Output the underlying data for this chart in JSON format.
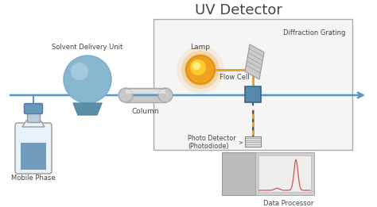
{
  "title": "UV Detector",
  "title_fontsize": 13,
  "bg_color": "#ffffff",
  "fig_width": 4.74,
  "fig_height": 2.61,
  "dpi": 100,
  "labels": {
    "mobile_phase": "Mobile Phase",
    "solvent_delivery": "Solvent Delivery Unit",
    "column": "Column",
    "lamp": "Lamp",
    "diffraction_grating": "Diffraction Grating",
    "flow_cell": "Flow Cell",
    "photo_detector": "Photo Detector\n(Photodiode)",
    "data_processor": "Data Processor"
  },
  "colors": {
    "line_blue": "#5599cc",
    "arrow_blue": "#5599cc",
    "pump_blue_top": "#88b8d0",
    "pump_blue_bot": "#5a8faa",
    "bottle_body": "#e8f2f8",
    "bottle_liquid": "#4a7fa8",
    "bottle_cap": "#6699bb",
    "column_gray": "#c8c8c8",
    "column_outline": "#aaaaaa",
    "lamp_outer": "#f0a020",
    "lamp_inner": "#ffcc30",
    "lamp_center": "#ffee80",
    "orange_line": "#e8a030",
    "flow_cell_blue": "#5588aa",
    "uv_box_border": "#aaaaaa",
    "uv_box_fill": "#f5f5f5",
    "data_box_fill": "#bbbbbb",
    "data_screen_bg": "#f0eeec",
    "data_screen_border": "#aaaaaa",
    "chromatogram_line": "#cc5555",
    "grating_fill": "#cccccc",
    "grating_line": "#999999",
    "dotted_line": "#555555",
    "text_color": "#444444",
    "detector_fill": "#dddddd"
  }
}
